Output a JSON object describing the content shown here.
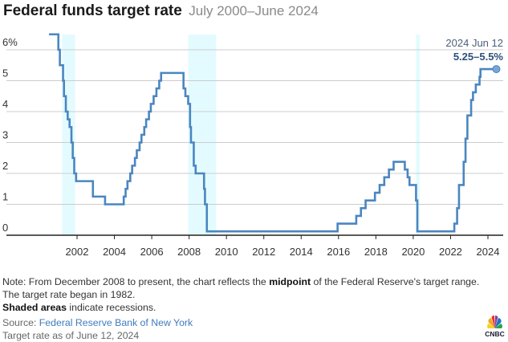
{
  "header": {
    "title": "Federal funds target rate",
    "subtitle": "July 2000–June 2024"
  },
  "annotation": {
    "date": "2024 Jun 12",
    "value": "5.25–5.5%"
  },
  "notes": {
    "line1_pre": "Note: From December 2008 to present, the chart reflects the ",
    "line1_bold": "midpoint",
    "line1_post": " of the Federal Reserve's target range. The target rate began in 1982.",
    "line2_bold": "Shaded areas",
    "line2_post": " indicate recessions.",
    "source_label": "Source: ",
    "source_name": "Federal Reserve Bank of New York",
    "asof": "Target rate as of June 12, 2024"
  },
  "logo": {
    "text": "CNBC"
  },
  "colors": {
    "line": "#4a86c0",
    "recession": "#e3fbff",
    "grid": "#cccccc",
    "axis": "#222222",
    "annotation_date": "#4a5f7a",
    "annotation_value": "#2d4f7a"
  },
  "chart_data": {
    "type": "line",
    "title": "Federal funds target rate",
    "subtitle": "July 2000–June 2024",
    "xlabel": "",
    "ylabel": "",
    "xlim": [
      2000.5,
      2024.95
    ],
    "ylim": [
      0,
      6.5
    ],
    "x_ticks": [
      "2002",
      "2004",
      "2006",
      "2008",
      "2010",
      "2012",
      "2014",
      "2016",
      "2018",
      "2020",
      "2022",
      "2024"
    ],
    "y_ticks": [
      "0",
      "1",
      "2",
      "3",
      "4",
      "5",
      "6%"
    ],
    "grid": true,
    "recessions": [
      [
        2001.2,
        2001.9
      ],
      [
        2007.95,
        2009.45
      ],
      [
        2020.15,
        2020.35
      ]
    ],
    "series": [
      {
        "name": "Federal funds target rate",
        "step": true,
        "points": [
          [
            2000.5,
            6.5
          ],
          [
            2001.0,
            6.0
          ],
          [
            2001.08,
            5.5
          ],
          [
            2001.25,
            5.0
          ],
          [
            2001.3,
            4.5
          ],
          [
            2001.4,
            4.0
          ],
          [
            2001.5,
            3.75
          ],
          [
            2001.6,
            3.5
          ],
          [
            2001.7,
            3.0
          ],
          [
            2001.77,
            2.5
          ],
          [
            2001.85,
            2.0
          ],
          [
            2001.95,
            1.75
          ],
          [
            2002.85,
            1.25
          ],
          [
            2003.5,
            1.0
          ],
          [
            2004.5,
            1.25
          ],
          [
            2004.6,
            1.5
          ],
          [
            2004.7,
            1.75
          ],
          [
            2004.85,
            2.0
          ],
          [
            2004.95,
            2.25
          ],
          [
            2005.1,
            2.5
          ],
          [
            2005.2,
            2.75
          ],
          [
            2005.35,
            3.0
          ],
          [
            2005.45,
            3.25
          ],
          [
            2005.6,
            3.5
          ],
          [
            2005.7,
            3.75
          ],
          [
            2005.85,
            4.0
          ],
          [
            2005.95,
            4.25
          ],
          [
            2006.1,
            4.5
          ],
          [
            2006.25,
            4.75
          ],
          [
            2006.4,
            5.0
          ],
          [
            2006.5,
            5.25
          ],
          [
            2007.7,
            4.75
          ],
          [
            2007.8,
            4.5
          ],
          [
            2007.95,
            4.25
          ],
          [
            2008.05,
            3.5
          ],
          [
            2008.1,
            3.0
          ],
          [
            2008.25,
            2.25
          ],
          [
            2008.35,
            2.0
          ],
          [
            2008.8,
            1.5
          ],
          [
            2008.85,
            1.0
          ],
          [
            2008.95,
            0.125
          ],
          [
            2015.95,
            0.375
          ],
          [
            2016.95,
            0.625
          ],
          [
            2017.2,
            0.875
          ],
          [
            2017.45,
            1.125
          ],
          [
            2017.95,
            1.375
          ],
          [
            2018.2,
            1.625
          ],
          [
            2018.45,
            1.875
          ],
          [
            2018.7,
            2.125
          ],
          [
            2018.95,
            2.375
          ],
          [
            2019.55,
            2.125
          ],
          [
            2019.7,
            1.875
          ],
          [
            2019.8,
            1.625
          ],
          [
            2020.15,
            1.125
          ],
          [
            2020.22,
            0.125
          ],
          [
            2022.2,
            0.375
          ],
          [
            2022.35,
            0.875
          ],
          [
            2022.45,
            1.625
          ],
          [
            2022.7,
            2.375
          ],
          [
            2022.8,
            3.125
          ],
          [
            2022.9,
            3.875
          ],
          [
            2023.1,
            4.375
          ],
          [
            2023.2,
            4.625
          ],
          [
            2023.35,
            4.875
          ],
          [
            2023.55,
            5.125
          ],
          [
            2023.6,
            5.375
          ],
          [
            2024.45,
            5.375
          ]
        ]
      }
    ]
  }
}
